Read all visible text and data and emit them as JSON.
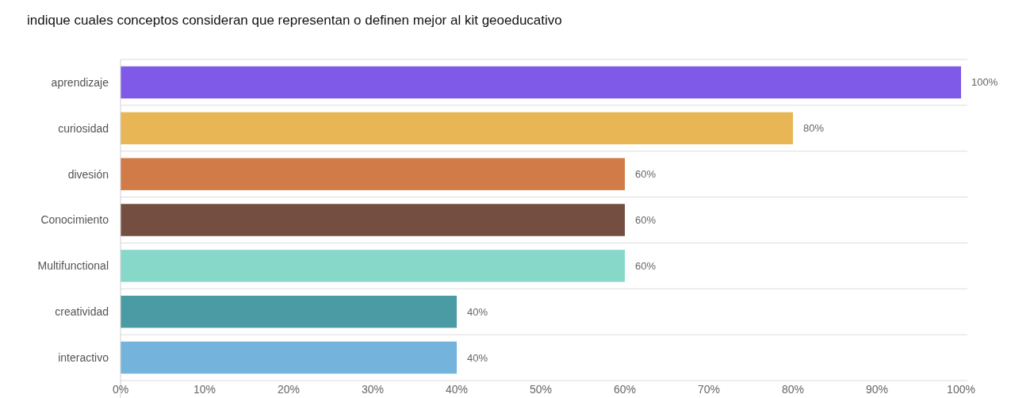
{
  "chart_data": {
    "type": "bar",
    "orientation": "horizontal",
    "title": "indique cuales conceptos consideran que representan o definen mejor al kit geoeducativo",
    "categories": [
      "aprendizaje",
      "curiosidad",
      "divesión",
      "Conocimiento",
      "Multifunctional",
      "creatividad",
      "interactivo"
    ],
    "values": [
      100,
      80,
      60,
      60,
      60,
      40,
      40
    ],
    "colors": [
      "#7f5ae8",
      "#e8b655",
      "#d17b48",
      "#744e40",
      "#88d8c9",
      "#4a9ba4",
      "#74b3dc"
    ],
    "value_labels": [
      "100%",
      "80%",
      "60%",
      "60%",
      "60%",
      "40%",
      "40%"
    ],
    "xlim": [
      0,
      100
    ],
    "xticks": [
      {
        "value": 0,
        "label": "0%"
      },
      {
        "value": 10,
        "label": "10%"
      },
      {
        "value": 20,
        "label": "20%"
      },
      {
        "value": 30,
        "label": "30%"
      },
      {
        "value": 40,
        "label": "40%"
      },
      {
        "value": 50,
        "label": "50%"
      },
      {
        "value": 60,
        "label": "60%"
      },
      {
        "value": 70,
        "label": "70%"
      },
      {
        "value": 80,
        "label": "80%"
      },
      {
        "value": 90,
        "label": "90%"
      },
      {
        "value": 100,
        "label": "100%"
      }
    ],
    "grid": "y"
  }
}
